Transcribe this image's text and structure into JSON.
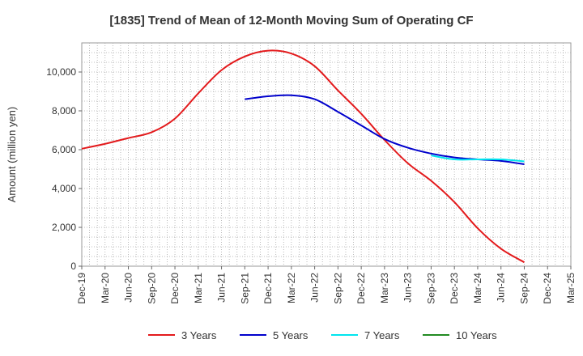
{
  "chart_data": {
    "type": "line",
    "title": "[1835]  Trend of Mean of 12-Month Moving Sum of Operating CF",
    "xlabel": "",
    "ylabel": "Amount (million yen)",
    "ylim": [
      0,
      11500
    ],
    "yticks": [
      0,
      2000,
      4000,
      6000,
      8000,
      10000
    ],
    "ytick_labels": [
      "0",
      "2,000",
      "4,000",
      "6,000",
      "8,000",
      "10,000"
    ],
    "categories": [
      "Dec-19",
      "Mar-20",
      "Jun-20",
      "Sep-20",
      "Dec-20",
      "Mar-21",
      "Jun-21",
      "Sep-21",
      "Dec-21",
      "Mar-22",
      "Jun-22",
      "Sep-22",
      "Dec-22",
      "Mar-23",
      "Jun-23",
      "Sep-23",
      "Dec-23",
      "Mar-24",
      "Jun-24",
      "Sep-24",
      "Dec-24",
      "Mar-25"
    ],
    "grid": true,
    "legend_position": "bottom",
    "series": [
      {
        "name": "3 Years",
        "color": "#e31a1c",
        "values": [
          6050,
          6300,
          6600,
          6900,
          7600,
          8900,
          10100,
          10800,
          11100,
          10950,
          10300,
          9050,
          7850,
          6500,
          5300,
          4400,
          3300,
          1950,
          900,
          200,
          null,
          null
        ]
      },
      {
        "name": "5 Years",
        "color": "#0000cc",
        "values": [
          null,
          null,
          null,
          null,
          null,
          null,
          null,
          8600,
          8750,
          8800,
          8600,
          7950,
          7250,
          6550,
          6100,
          5800,
          5600,
          5500,
          5420,
          5250,
          null,
          null
        ]
      },
      {
        "name": "7 Years",
        "color": "#00e5ee",
        "values": [
          null,
          null,
          null,
          null,
          null,
          null,
          null,
          null,
          null,
          null,
          null,
          null,
          null,
          null,
          null,
          5700,
          5500,
          5500,
          5500,
          5400,
          null,
          null
        ]
      },
      {
        "name": "10 Years",
        "color": "#228b22",
        "values": [
          null,
          null,
          null,
          null,
          null,
          null,
          null,
          null,
          null,
          null,
          null,
          null,
          null,
          null,
          null,
          null,
          null,
          null,
          null,
          null,
          null,
          null
        ]
      }
    ]
  }
}
